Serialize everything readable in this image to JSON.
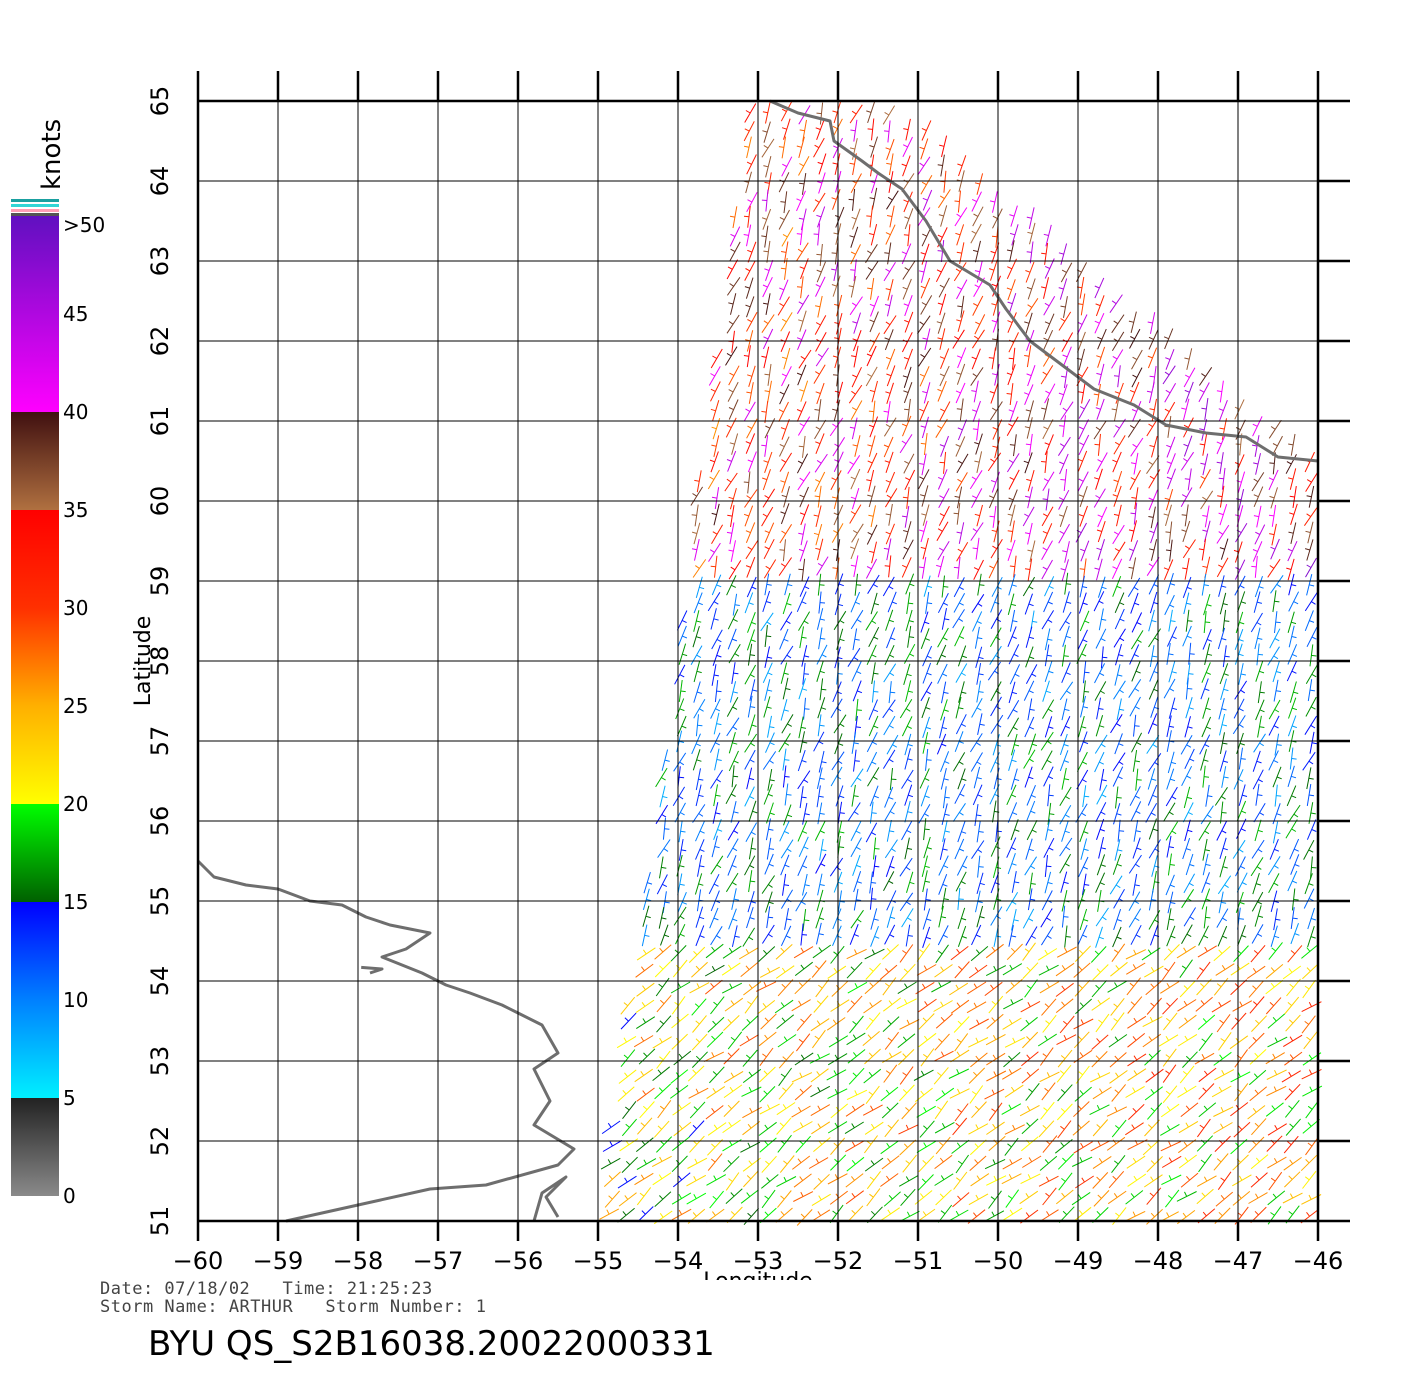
{
  "map": {
    "xlabel": "Longitude",
    "ylabel": "Latitude",
    "lon_range": [
      -60,
      -46
    ],
    "lat_range": [
      51,
      65
    ],
    "lon_ticks": [
      "−60",
      "−59",
      "−58",
      "−57",
      "−56",
      "−55",
      "−54",
      "−53",
      "−52",
      "−51",
      "−50",
      "−49",
      "−48",
      "−47",
      "−46"
    ],
    "lat_ticks": [
      "51",
      "52",
      "53",
      "54",
      "55",
      "56",
      "57",
      "58",
      "59",
      "60",
      "61",
      "62",
      "63",
      "64",
      "65"
    ],
    "grid": true,
    "coastline_color": "#6e6e6e",
    "swath": {
      "corners_lonlat": [
        [
          -55.0,
          51.0
        ],
        [
          -53.1,
          65.0
        ],
        [
          -51.3,
          65.0
        ],
        [
          -46.0,
          60.5
        ],
        [
          -46.0,
          51.0
        ]
      ]
    }
  },
  "colorbar": {
    "unit_label": "knots",
    "top_label": ">50",
    "labels": [
      "0",
      "5",
      "10",
      "15",
      "20",
      "25",
      "30",
      "35",
      "40",
      "45"
    ],
    "stops": [
      {
        "value": 0,
        "color": "#8a8a8a"
      },
      {
        "value": 5,
        "color": "#222222"
      },
      {
        "value": 5,
        "color": "#00f0ff"
      },
      {
        "value": 10,
        "color": "#0080ff"
      },
      {
        "value": 15,
        "color": "#0000ff"
      },
      {
        "value": 15,
        "color": "#006000"
      },
      {
        "value": 20,
        "color": "#00ff00"
      },
      {
        "value": 20,
        "color": "#ffff00"
      },
      {
        "value": 25,
        "color": "#ffb000"
      },
      {
        "value": 30,
        "color": "#ff3000"
      },
      {
        "value": 35,
        "color": "#ff0000"
      },
      {
        "value": 35,
        "color": "#b07040"
      },
      {
        "value": 40,
        "color": "#401010"
      },
      {
        "value": 40,
        "color": "#ff00ff"
      },
      {
        "value": 50,
        "color": "#6010c0"
      }
    ]
  },
  "wind_regions": [
    {
      "name": "north_strong",
      "lat_min": 59.0,
      "lat_max": 65.0,
      "speed_knots": [
        22,
        40
      ],
      "direction_deg": 200
    },
    {
      "name": "central_weak",
      "lat_min": 54.5,
      "lat_max": 59.0,
      "speed_knots": [
        8,
        18
      ],
      "direction_deg": 20
    },
    {
      "name": "south_moderate",
      "lat_min": 51.0,
      "lat_max": 54.5,
      "speed_knots": [
        12,
        26
      ],
      "direction_deg": 230
    }
  ],
  "footer": {
    "date_line": "Date: 07/18/02   Time: 21:25:23",
    "storm_line": "Storm Name: ARTHUR   Storm Number: 1",
    "product": "BYU QS_S2B16038.20022000331"
  }
}
